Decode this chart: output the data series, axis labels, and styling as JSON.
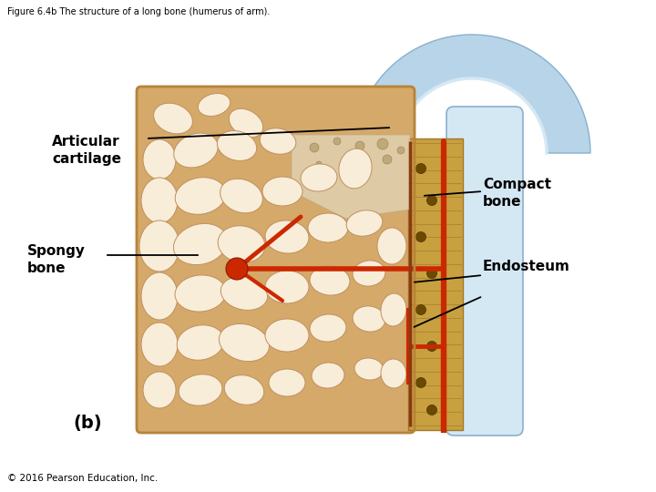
{
  "title": "Figure 6.4b The structure of a long bone (humerus of arm).",
  "title_fontsize": 7,
  "title_color": "#000000",
  "background_color": "#ffffff",
  "label_fontsize": 11,
  "copyright_text": "© 2016 Pearson Education, Inc.",
  "copyright_fontsize": 7.5,
  "subfig_label": "(b)",
  "subfig_fontsize": 14,
  "spongy_color": "#D4A96A",
  "spongy_dark": "#B8843A",
  "spongy_light": "#F0DDB8",
  "compact_tan": "#C8A040",
  "compact_stripe": "#A07828",
  "cartilage_blue": "#B8D4E8",
  "cartilage_blue_dark": "#8AB0CC",
  "cartilage_blue_light": "#D4E8F4",
  "fibrous_color": "#E0D0B0",
  "fibrous_dark": "#B8A888",
  "blood_red": "#CC2800",
  "blood_dark": "#8B1800",
  "endosteum_line": "#8B4513",
  "hole_fill": "#F8EDD8",
  "hole_edge": "#C09060"
}
